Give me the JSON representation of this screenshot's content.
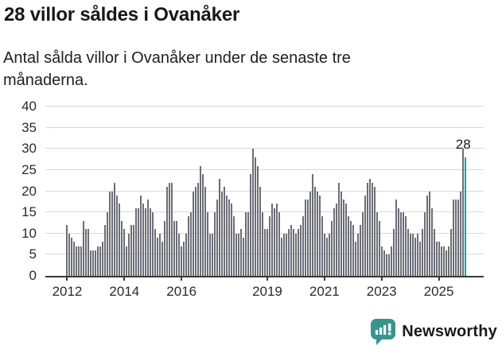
{
  "header": {
    "title": "28 villor såldes i Ovanåker",
    "subtitle": "Antal sålda villor i Ovanåker under de senaste tre månaderna."
  },
  "chart_data": {
    "type": "bar",
    "title": "28 villor såldes i Ovanåker",
    "subtitle": "Antal sålda villor i Ovanåker under de senaste tre månaderna.",
    "ylabel": "",
    "xlabel": "",
    "ylim": [
      0,
      40
    ],
    "grid": true,
    "bar_color": "#6d6d77",
    "axis_color": "#3a3a3a",
    "gridline_color": "#d9d9d9",
    "tick_text_color": "#2b2b2b",
    "period": "monthly, Jan 2012 - latest, rolling 3-month sales count",
    "yticks": [
      0,
      5,
      10,
      15,
      20,
      25,
      30,
      35,
      40
    ],
    "xticks": [
      {
        "label": "2012",
        "month_index": 0
      },
      {
        "label": "2014",
        "month_index": 24
      },
      {
        "label": "2016",
        "month_index": 48
      },
      {
        "label": "2019",
        "month_index": 84
      },
      {
        "label": "2021",
        "month_index": 108
      },
      {
        "label": "2023",
        "month_index": 132
      },
      {
        "label": "2025",
        "month_index": 156
      }
    ],
    "values": [
      12,
      10,
      9,
      8,
      7,
      7,
      7,
      13,
      11,
      11,
      6,
      6,
      6,
      7,
      7,
      8,
      12,
      15,
      20,
      20,
      22,
      19,
      17,
      13,
      11,
      7,
      10,
      12,
      12,
      16,
      16,
      19,
      17,
      16,
      18,
      16,
      15,
      11,
      9,
      10,
      8,
      13,
      21,
      22,
      22,
      13,
      13,
      10,
      7,
      8,
      10,
      14,
      15,
      20,
      21,
      22,
      26,
      24,
      21,
      15,
      10,
      10,
      15,
      18,
      23,
      20,
      21,
      19,
      18,
      17,
      14,
      10,
      10,
      11,
      9,
      15,
      15,
      24,
      30,
      28,
      26,
      21,
      15,
      11,
      11,
      14,
      17,
      16,
      17,
      15,
      9,
      10,
      10,
      11,
      12,
      11,
      10,
      11,
      12,
      14,
      18,
      18,
      20,
      24,
      21,
      20,
      19,
      14,
      10,
      9,
      10,
      13,
      16,
      17,
      22,
      20,
      18,
      17,
      14,
      13,
      12,
      8,
      10,
      12,
      15,
      19,
      22,
      23,
      22,
      21,
      15,
      13,
      7,
      6,
      5,
      5,
      7,
      11,
      18,
      16,
      15,
      15,
      14,
      11,
      10,
      10,
      9,
      10,
      8,
      11,
      15,
      19,
      20,
      16,
      11,
      8,
      8,
      7,
      7,
      6,
      7,
      11,
      18,
      18,
      18,
      20,
      30,
      28
    ],
    "highlight": {
      "index_from_end": 0,
      "value": 28,
      "label": "28",
      "color": "#11a09d"
    }
  },
  "footer": {
    "brand": "Newsworthy",
    "brand_color": "#3a948e",
    "logo_icon": "newsworthy-speech-bubble-bar-chart-icon"
  }
}
